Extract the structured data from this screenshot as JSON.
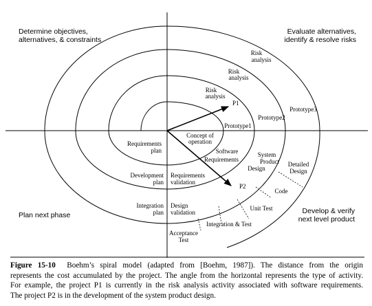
{
  "quadrants": {
    "top_left": [
      "Determine objectives,",
      "alternatives, & constraints"
    ],
    "top_right": [
      "Evaluate alternatives,",
      "identify & resolve risks"
    ],
    "bottom_left": [
      "Plan next phase"
    ],
    "bottom_right": [
      "Develop & verify",
      "next level product"
    ]
  },
  "spiral_labels": {
    "risk_analysis_1": [
      "Risk",
      "analysis"
    ],
    "risk_analysis_2": [
      "Risk",
      "analysis"
    ],
    "risk_analysis_3": [
      "Risk",
      "analysis"
    ],
    "p1": "P1",
    "prototype1": "Prototype1",
    "prototype2": "Prototype2",
    "prototype3": "Prototype3",
    "concept": [
      "Concept of",
      "operation"
    ],
    "software_requirements": [
      "Software",
      "Requirements"
    ],
    "requirements_plan": [
      "Requirements",
      "plan"
    ],
    "system_product_design": [
      "System",
      "Product",
      "Design"
    ],
    "development_plan": [
      "Development",
      "plan"
    ],
    "requirements_validation": [
      "Requirements",
      "validation"
    ],
    "p2": "P2",
    "detailed_design": [
      "Detailed",
      "Design"
    ],
    "code": "Code",
    "unit_test": "Unit Test",
    "integration_plan": [
      "Integration",
      "plan"
    ],
    "design_validation": [
      "Design",
      "validation"
    ],
    "integration_test": "Integration & Test",
    "acceptance_test": [
      "Acceptance",
      "Test"
    ]
  },
  "caption": {
    "label": "Figure 15-10",
    "lines": [
      "Boehm’s spiral model (adapted from [Boehm, 1987]). The distance from the origin",
      "represents the cost accumulated by the project. The angle from the horizontal represents the type of activity.",
      "For example, the project P1 is currently in the risk analysis activity associated with software requirements.",
      "The project P2 is in the development of the system product design."
    ]
  }
}
